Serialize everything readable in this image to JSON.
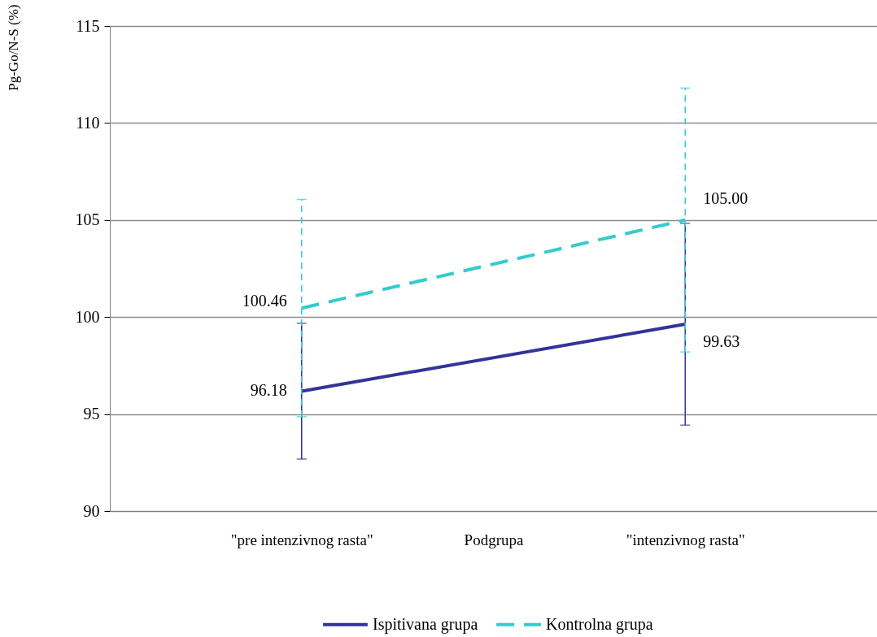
{
  "chart_data": {
    "type": "line",
    "categories": [
      "\"pre intenzivnog rasta\"",
      "\"intenzivnog rasta\""
    ],
    "xlabel": "Podgrupa",
    "ylabel": "Pg-Go/N-S (%)",
    "ylim": [
      90,
      115
    ],
    "yticks": [
      90,
      95,
      100,
      105,
      110,
      115
    ],
    "grid": "y",
    "legend": "bottom",
    "series": [
      {
        "name": "Ispitivana grupa",
        "color": "#333399",
        "line_style": "solid",
        "values": [
          96.18,
          99.63
        ],
        "errors": [
          3.5,
          5.2
        ],
        "value_labels": [
          "96.18",
          "99.63"
        ]
      },
      {
        "name": "Kontrolna grupa",
        "color": "#33cccc",
        "line_style": "dashed",
        "values": [
          100.46,
          105.0
        ],
        "errors": [
          5.6,
          6.8
        ],
        "value_labels": [
          "100.46",
          "105.00"
        ]
      }
    ]
  }
}
